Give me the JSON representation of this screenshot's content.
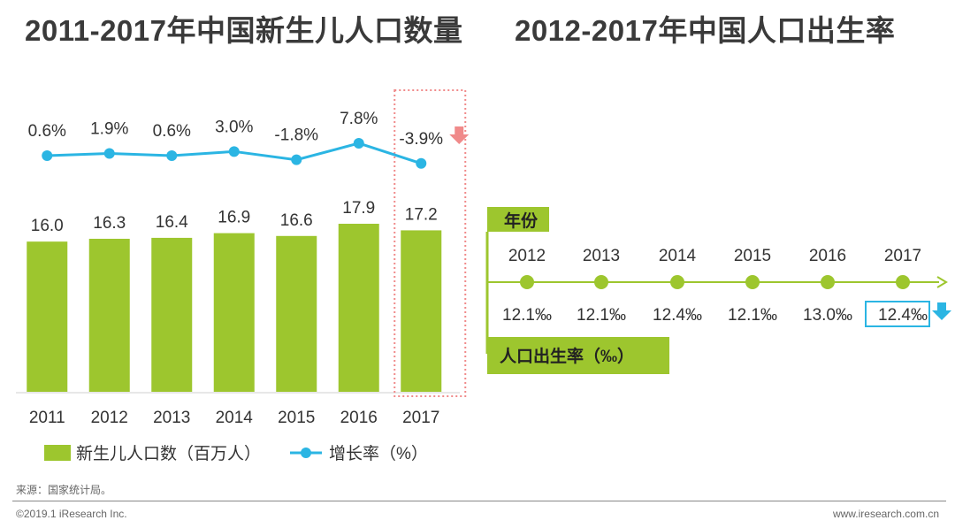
{
  "titles": {
    "left": "2011-2017年中国新生儿人口数量",
    "right": "2012-2017年中国人口出生率"
  },
  "colors": {
    "bar": "#9dc62e",
    "line": "#2bb5e3",
    "highlight": "#f08a8a",
    "text": "#333333"
  },
  "chart_data": [
    {
      "type": "bar",
      "title": "2011-2017年中国新生儿人口数量",
      "categories": [
        "2011",
        "2012",
        "2013",
        "2014",
        "2015",
        "2016",
        "2017"
      ],
      "series": [
        {
          "name": "新生儿人口数（百万人）",
          "type": "bar",
          "values": [
            16.0,
            16.3,
            16.4,
            16.9,
            16.6,
            17.9,
            17.2
          ],
          "labels": [
            "16.0",
            "16.3",
            "16.4",
            "16.9",
            "16.6",
            "17.9",
            "17.2"
          ]
        },
        {
          "name": "增长率（%）",
          "type": "line",
          "values": [
            0.6,
            1.9,
            0.6,
            3.0,
            -1.8,
            7.8,
            -3.9
          ],
          "labels": [
            "0.6%",
            "1.9%",
            "0.6%",
            "3.0%",
            "-1.8%",
            "7.8%",
            "-3.9%"
          ]
        }
      ],
      "legend": [
        "新生儿人口数（百万人）",
        "增长率（%）"
      ],
      "highlight_category": "2017"
    },
    {
      "type": "line",
      "title": "2012-2017年中国人口出生率",
      "axis_label": "年份",
      "series_label": "人口出生率（‰）",
      "categories": [
        "2012",
        "2013",
        "2014",
        "2015",
        "2016",
        "2017"
      ],
      "values": [
        12.1,
        12.1,
        12.4,
        12.1,
        13.0,
        12.4
      ],
      "labels": [
        "12.1‰",
        "12.1‰",
        "12.4‰",
        "12.1‰",
        "13.0‰",
        "12.4‰"
      ],
      "highlight_category": "2017"
    }
  ],
  "footer": {
    "source": "来源：国家统计局。",
    "copyright": "©2019.1 iResearch Inc.",
    "site": "www.iresearch.com.cn"
  }
}
